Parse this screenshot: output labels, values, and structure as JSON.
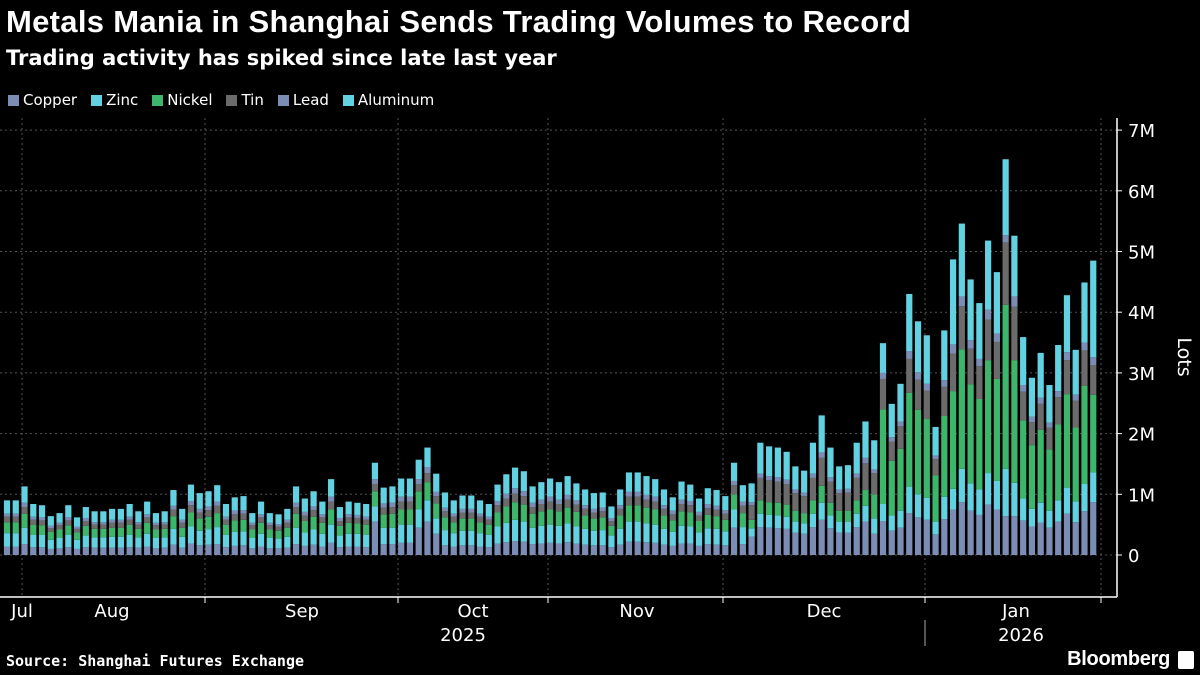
{
  "title": "Metals Mania in Shanghai Sends Trading Volumes to Record",
  "subtitle": "Trading activity has spiked since late last year",
  "source": "Source: Shanghai Futures Exchange",
  "brand": "Bloomberg",
  "chart_data": {
    "type": "bar",
    "stacked": true,
    "ylabel": "Lots",
    "ylim": [
      0,
      7000000
    ],
    "yticks": [
      "0",
      "1M",
      "2M",
      "3M",
      "4M",
      "5M",
      "6M",
      "7M"
    ],
    "y_axis_side": "right",
    "grid": true,
    "legend_position": "top-left",
    "unit": "million lots",
    "xticks": [
      "Jul",
      "Aug",
      "Sep",
      "Oct",
      "Nov",
      "Dec",
      "Jan"
    ],
    "years": [
      "2025",
      "2026"
    ],
    "series": [
      {
        "name": "Copper",
        "color": "#7b8db5",
        "values": [
          0.14,
          0.14,
          0.18,
          0.13,
          0.13,
          0.1,
          0.11,
          0.13,
          0.1,
          0.13,
          0.12,
          0.12,
          0.12,
          0.12,
          0.13,
          0.12,
          0.14,
          0.11,
          0.12,
          0.17,
          0.12,
          0.19,
          0.16,
          0.17,
          0.18,
          0.13,
          0.15,
          0.16,
          0.11,
          0.14,
          0.11,
          0.11,
          0.12,
          0.18,
          0.15,
          0.17,
          0.14,
          0.2,
          0.13,
          0.14,
          0.14,
          0.13,
          0.55,
          0.18,
          0.18,
          0.2,
          0.2,
          0.45,
          0.55,
          0.35,
          0.16,
          0.14,
          0.16,
          0.16,
          0.14,
          0.13,
          0.19,
          0.21,
          0.23,
          0.22,
          0.18,
          0.19,
          0.2,
          0.19,
          0.21,
          0.19,
          0.17,
          0.16,
          0.16,
          0.13,
          0.17,
          0.22,
          0.22,
          0.21,
          0.2,
          0.17,
          0.15,
          0.19,
          0.19,
          0.15,
          0.18,
          0.17,
          0.16,
          0.45,
          0.18,
          0.3,
          0.46,
          0.45,
          0.44,
          0.43,
          0.37,
          0.35,
          0.46,
          0.58,
          0.44,
          0.37,
          0.37,
          0.46,
          0.55,
          0.35,
          0.56,
          0.4,
          0.45,
          0.69,
          0.62,
          0.58,
          0.34,
          0.59,
          0.75,
          0.87,
          0.73,
          0.66,
          0.83,
          0.75,
          0.64,
          0.64,
          0.57,
          0.47,
          0.53,
          0.45,
          0.55,
          0.68,
          0.54,
          0.72,
          0.87
        ]
      },
      {
        "name": "Zinc",
        "color": "#62d2e3",
        "values": [
          0.22,
          0.22,
          0.27,
          0.2,
          0.2,
          0.15,
          0.17,
          0.2,
          0.15,
          0.19,
          0.17,
          0.17,
          0.18,
          0.18,
          0.2,
          0.17,
          0.21,
          0.17,
          0.17,
          0.26,
          0.18,
          0.28,
          0.24,
          0.25,
          0.28,
          0.2,
          0.23,
          0.23,
          0.17,
          0.21,
          0.17,
          0.16,
          0.18,
          0.27,
          0.22,
          0.25,
          0.21,
          0.3,
          0.19,
          0.21,
          0.21,
          0.2,
          0.25,
          0.27,
          0.27,
          0.3,
          0.3,
          0.3,
          0.35,
          0.25,
          0.25,
          0.22,
          0.24,
          0.24,
          0.22,
          0.2,
          0.28,
          0.32,
          0.35,
          0.33,
          0.27,
          0.29,
          0.3,
          0.29,
          0.31,
          0.28,
          0.26,
          0.24,
          0.25,
          0.19,
          0.26,
          0.33,
          0.33,
          0.31,
          0.3,
          0.26,
          0.23,
          0.29,
          0.28,
          0.22,
          0.26,
          0.26,
          0.23,
          0.3,
          0.28,
          0.14,
          0.22,
          0.21,
          0.21,
          0.2,
          0.18,
          0.17,
          0.22,
          0.28,
          0.21,
          0.18,
          0.18,
          0.22,
          0.26,
          0.25,
          0.28,
          0.25,
          0.28,
          0.43,
          0.38,
          0.36,
          0.21,
          0.37,
          0.34,
          0.55,
          0.45,
          0.42,
          0.52,
          0.47,
          0.78,
          0.55,
          0.36,
          0.29,
          0.33,
          0.28,
          0.35,
          0.43,
          0.34,
          0.45,
          0.49
        ]
      },
      {
        "name": "Nickel",
        "color": "#3db56b",
        "values": [
          0.18,
          0.18,
          0.23,
          0.17,
          0.16,
          0.13,
          0.14,
          0.16,
          0.12,
          0.16,
          0.14,
          0.14,
          0.15,
          0.15,
          0.17,
          0.14,
          0.18,
          0.14,
          0.14,
          0.21,
          0.15,
          0.23,
          0.2,
          0.21,
          0.23,
          0.17,
          0.19,
          0.19,
          0.14,
          0.18,
          0.14,
          0.13,
          0.15,
          0.23,
          0.19,
          0.21,
          0.18,
          0.25,
          0.16,
          0.18,
          0.17,
          0.17,
          0.25,
          0.22,
          0.23,
          0.25,
          0.25,
          0.3,
          0.3,
          0.25,
          0.21,
          0.18,
          0.2,
          0.2,
          0.18,
          0.17,
          0.23,
          0.27,
          0.29,
          0.28,
          0.23,
          0.24,
          0.25,
          0.24,
          0.26,
          0.24,
          0.22,
          0.2,
          0.21,
          0.16,
          0.22,
          0.27,
          0.27,
          0.26,
          0.25,
          0.22,
          0.19,
          0.24,
          0.23,
          0.19,
          0.22,
          0.21,
          0.19,
          0.25,
          0.23,
          0.14,
          0.22,
          0.21,
          0.21,
          0.2,
          0.18,
          0.17,
          0.22,
          0.28,
          0.21,
          0.18,
          0.18,
          0.22,
          0.26,
          0.4,
          1.56,
          0.9,
          1.02,
          1.55,
          1.39,
          1.3,
          0.76,
          1.33,
          1.61,
          1.97,
          1.63,
          1.49,
          1.86,
          1.68,
          2.7,
          2.02,
          1.29,
          1.05,
          1.2,
          1.01,
          1.25,
          1.54,
          1.22,
          1.62,
          1.28
        ]
      },
      {
        "name": "Tin",
        "color": "#6b6b6b",
        "values": [
          0.09,
          0.09,
          0.11,
          0.08,
          0.08,
          0.06,
          0.07,
          0.08,
          0.06,
          0.08,
          0.07,
          0.07,
          0.08,
          0.08,
          0.08,
          0.07,
          0.09,
          0.07,
          0.07,
          0.11,
          0.08,
          0.12,
          0.1,
          0.11,
          0.12,
          0.08,
          0.1,
          0.1,
          0.07,
          0.09,
          0.07,
          0.07,
          0.08,
          0.11,
          0.09,
          0.11,
          0.09,
          0.13,
          0.08,
          0.09,
          0.09,
          0.08,
          0.12,
          0.11,
          0.11,
          0.13,
          0.13,
          0.12,
          0.15,
          0.12,
          0.1,
          0.09,
          0.1,
          0.1,
          0.09,
          0.08,
          0.12,
          0.13,
          0.14,
          0.14,
          0.11,
          0.12,
          0.13,
          0.12,
          0.13,
          0.12,
          0.11,
          0.1,
          0.1,
          0.08,
          0.11,
          0.14,
          0.14,
          0.13,
          0.13,
          0.11,
          0.1,
          0.12,
          0.12,
          0.09,
          0.11,
          0.11,
          0.1,
          0.15,
          0.12,
          0.24,
          0.37,
          0.36,
          0.35,
          0.34,
          0.29,
          0.28,
          0.37,
          0.46,
          0.35,
          0.29,
          0.3,
          0.37,
          0.44,
          0.35,
          0.5,
          0.32,
          0.37,
          0.56,
          0.5,
          0.47,
          0.27,
          0.48,
          0.62,
          0.71,
          0.59,
          0.54,
          0.67,
          0.61,
          1.03,
          0.88,
          0.47,
          0.38,
          0.43,
          0.36,
          0.45,
          0.56,
          0.44,
          0.58,
          0.49
        ]
      },
      {
        "name": "Lead",
        "color": "#7b8db5",
        "values": [
          0.05,
          0.05,
          0.07,
          0.05,
          0.05,
          0.04,
          0.04,
          0.05,
          0.04,
          0.05,
          0.04,
          0.04,
          0.05,
          0.05,
          0.05,
          0.04,
          0.05,
          0.04,
          0.04,
          0.06,
          0.05,
          0.07,
          0.06,
          0.06,
          0.07,
          0.05,
          0.06,
          0.06,
          0.04,
          0.05,
          0.04,
          0.04,
          0.05,
          0.07,
          0.06,
          0.06,
          0.05,
          0.08,
          0.05,
          0.05,
          0.05,
          0.05,
          0.08,
          0.07,
          0.07,
          0.08,
          0.08,
          0.08,
          0.1,
          0.07,
          0.06,
          0.05,
          0.06,
          0.06,
          0.05,
          0.05,
          0.07,
          0.08,
          0.09,
          0.08,
          0.07,
          0.07,
          0.08,
          0.07,
          0.08,
          0.07,
          0.06,
          0.06,
          0.06,
          0.05,
          0.06,
          0.08,
          0.08,
          0.08,
          0.08,
          0.06,
          0.06,
          0.07,
          0.07,
          0.06,
          0.07,
          0.06,
          0.06,
          0.07,
          0.07,
          0.05,
          0.07,
          0.07,
          0.07,
          0.07,
          0.06,
          0.06,
          0.07,
          0.09,
          0.07,
          0.06,
          0.06,
          0.07,
          0.09,
          0.06,
          0.1,
          0.07,
          0.08,
          0.13,
          0.12,
          0.11,
          0.06,
          0.11,
          0.15,
          0.16,
          0.14,
          0.12,
          0.16,
          0.14,
          0.12,
          0.17,
          0.11,
          0.09,
          0.1,
          0.08,
          0.1,
          0.13,
          0.1,
          0.13,
          0.13
        ]
      },
      {
        "name": "Aluminum",
        "color": "#62d2e3",
        "values": [
          0.22,
          0.22,
          0.27,
          0.21,
          0.2,
          0.16,
          0.16,
          0.2,
          0.15,
          0.18,
          0.18,
          0.18,
          0.18,
          0.18,
          0.21,
          0.18,
          0.21,
          0.16,
          0.18,
          0.26,
          0.18,
          0.27,
          0.26,
          0.25,
          0.27,
          0.21,
          0.22,
          0.23,
          0.16,
          0.21,
          0.16,
          0.16,
          0.18,
          0.27,
          0.22,
          0.25,
          0.21,
          0.29,
          0.18,
          0.21,
          0.2,
          0.21,
          0.27,
          0.26,
          0.27,
          0.3,
          0.3,
          0.32,
          0.32,
          0.3,
          0.25,
          0.22,
          0.22,
          0.22,
          0.22,
          0.21,
          0.27,
          0.32,
          0.34,
          0.33,
          0.27,
          0.29,
          0.3,
          0.29,
          0.31,
          0.28,
          0.26,
          0.26,
          0.25,
          0.19,
          0.26,
          0.32,
          0.32,
          0.31,
          0.29,
          0.26,
          0.22,
          0.3,
          0.27,
          0.22,
          0.26,
          0.26,
          0.23,
          0.3,
          0.27,
          0.31,
          0.51,
          0.49,
          0.49,
          0.46,
          0.38,
          0.36,
          0.51,
          0.61,
          0.49,
          0.38,
          0.39,
          0.51,
          0.6,
          0.48,
          0.49,
          0.55,
          0.62,
          0.94,
          0.84,
          0.8,
          0.47,
          0.82,
          1.4,
          1.2,
          1.0,
          0.92,
          1.14,
          1.01,
          1.25,
          1.0,
          0.79,
          0.64,
          0.74,
          0.62,
          0.76,
          0.94,
          0.74,
          0.99,
          1.59
        ]
      }
    ]
  }
}
